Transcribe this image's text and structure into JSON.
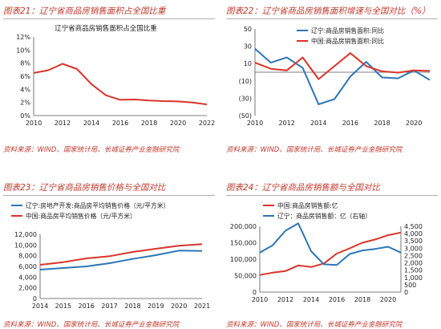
{
  "panels": [
    {
      "title": "图表21：辽宁省商品房销售面积占全国比重",
      "source": "资料来源：WIND、国家统计局、长城证券产业金融研究院"
    },
    {
      "title": "图表22：辽宁省商品房销售面积增速与全国对比（%）",
      "source": "资料来源：WIND、国家统计局、长城证券产业金融研究院"
    },
    {
      "title": "图表23：辽宁省商品房销售价格与全国对比",
      "source": "资料来源：WIND、国家统计局、长城证券产业金融研究院"
    },
    {
      "title": "图表24：辽宁省商品房销售额与全国对比",
      "source": "资料来源：WIND、国家统计局、长城证券产业金融研究院"
    }
  ],
  "colors": {
    "red": "#d9342b",
    "blue": "#2e75b6",
    "title": "#c0392b",
    "axis": "#555555"
  },
  "chart_data": [
    {
      "type": "line",
      "title": "辽宁省商品房销售面积占全国比重",
      "x": [
        2010,
        2011,
        2012,
        2013,
        2014,
        2015,
        2016,
        2017,
        2018,
        2019,
        2020,
        2021,
        2022
      ],
      "series": [
        {
          "values": [
            6.5,
            6.9,
            7.9,
            7.1,
            4.8,
            3.1,
            2.4,
            2.45,
            2.3,
            2.2,
            2.15,
            2.0,
            1.7
          ]
        }
      ],
      "xticks": [
        "2010",
        "2012",
        "2014",
        "2016",
        "2018",
        "2020",
        "2022"
      ],
      "yticks": [
        "0%",
        "2%",
        "4%",
        "6%",
        "8%",
        "10%",
        "12%"
      ],
      "xlim": [
        2010,
        2022
      ],
      "ylim": [
        0,
        12
      ],
      "grid": false
    },
    {
      "type": "line",
      "legend": "top-right",
      "x": [
        2010,
        2011,
        2012,
        2013,
        2014,
        2015,
        2016,
        2017,
        2018,
        2019,
        2020,
        2021
      ],
      "series": [
        {
          "name": "辽宁:商品房销售面积:同比",
          "values": [
            27,
            11,
            17,
            5,
            -37,
            -31,
            -5,
            12,
            -6,
            -7,
            2,
            -9
          ]
        },
        {
          "name": "中国:商品房销售面积:同比",
          "values": [
            11,
            4,
            2,
            17,
            -8,
            7,
            22,
            7,
            1,
            -0.5,
            2,
            1.5
          ]
        }
      ],
      "xticks": [
        "2010",
        "2012",
        "2014",
        "2016",
        "2018",
        "2020"
      ],
      "yticks": [
        "(50)",
        "(30)",
        "(10)",
        "10",
        "30",
        "50"
      ],
      "xlim": [
        2010,
        2021
      ],
      "ylim": [
        -50,
        50
      ],
      "grid": false
    },
    {
      "type": "line",
      "legend": "top-left",
      "x": [
        2014,
        2015,
        2016,
        2017,
        2018,
        2019,
        2020,
        2021
      ],
      "series": [
        {
          "name": "辽宁:房地产开发:商品房平均销售价格（元/平方米）",
          "values": [
            5400,
            5700,
            6000,
            6600,
            7400,
            8100,
            8950,
            8900
          ]
        },
        {
          "name": "中国:商品房平均销售价格（元/平方米）",
          "values": [
            6300,
            6800,
            7500,
            7900,
            8700,
            9300,
            9850,
            10150
          ]
        }
      ],
      "xticks": [
        "2014",
        "2015",
        "2016",
        "2017",
        "2018",
        "2019",
        "2020",
        "2021"
      ],
      "yticks": [
        "0",
        "2,000",
        "4,000",
        "6,000",
        "8,000",
        "10,000",
        "12,000"
      ],
      "xlim": [
        2014,
        2021
      ],
      "ylim": [
        0,
        12000
      ],
      "grid": false
    },
    {
      "type": "line",
      "legend": "top-left",
      "x": [
        2010,
        2011,
        2012,
        2013,
        2014,
        2015,
        2016,
        2017,
        2018,
        2019,
        2020,
        2021
      ],
      "series": [
        {
          "name": "中国:商品房销售额:亿",
          "axis": "left",
          "values": [
            52000,
            59000,
            64000,
            81000,
            76000,
            87000,
            117000,
            133000,
            150000,
            160000,
            173000,
            181000
          ]
        },
        {
          "name": "辽宁：商品房销售额：亿（右轴）",
          "axis": "right",
          "values": [
            2700,
            3200,
            4200,
            4700,
            2800,
            1900,
            1850,
            2600,
            2850,
            2950,
            3100,
            2700
          ]
        }
      ],
      "xticks": [
        "2010",
        "2012",
        "2014",
        "2016",
        "2018",
        "2020"
      ],
      "yticks_left": [
        "0",
        "50,000",
        "100,000",
        "150,000",
        "200,000"
      ],
      "yticks_right": [
        "0",
        "500",
        "1,000",
        "1,500",
        "2,000",
        "2,500",
        "3,000",
        "3,500",
        "4,000",
        "4,500"
      ],
      "xlim": [
        2010,
        2021
      ],
      "ylim": [
        0,
        200000
      ],
      "ylim_right": [
        0,
        4500
      ],
      "grid": false
    }
  ]
}
